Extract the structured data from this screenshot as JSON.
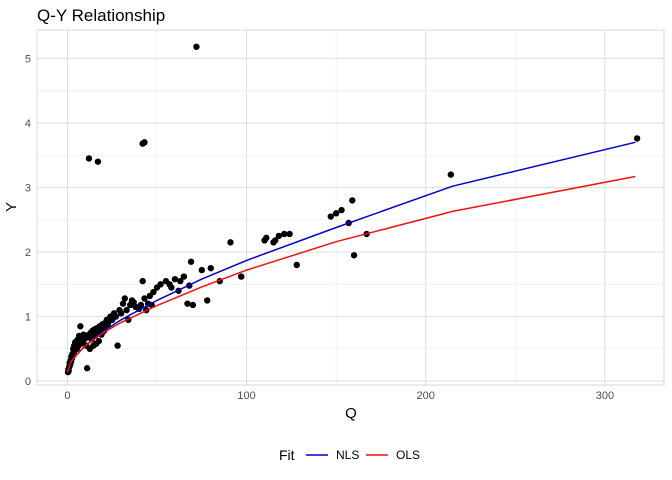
{
  "chart_data": {
    "type": "scatter",
    "title": "Q-Y Relationship",
    "xlabel": "Q",
    "ylabel": "Y",
    "xlim": [
      -17,
      333
    ],
    "ylim": [
      -0.06,
      5.44
    ],
    "x_ticks": [
      0,
      100,
      200,
      300
    ],
    "y_ticks": [
      0,
      1,
      2,
      3,
      4,
      5
    ],
    "x_tick_labels": [
      "0",
      "100",
      "200",
      "300"
    ],
    "y_tick_labels": [
      "0",
      "1",
      "2",
      "3",
      "4",
      "5"
    ],
    "grid": true,
    "legend": {
      "title": "Fit",
      "placement": "bottom",
      "entries": [
        {
          "label": "NLS",
          "color": "#0000cc"
        },
        {
          "label": "OLS",
          "color": "#ee1111"
        }
      ]
    },
    "points": [
      [
        0.3,
        0.14
      ],
      [
        0.5,
        0.18
      ],
      [
        0.7,
        0.16
      ],
      [
        1,
        0.22
      ],
      [
        1.2,
        0.28
      ],
      [
        1.5,
        0.25
      ],
      [
        1.8,
        0.32
      ],
      [
        2,
        0.3
      ],
      [
        2.2,
        0.38
      ],
      [
        2.5,
        0.35
      ],
      [
        2.8,
        0.42
      ],
      [
        3,
        0.4
      ],
      [
        3.2,
        0.5
      ],
      [
        3.5,
        0.45
      ],
      [
        3.8,
        0.55
      ],
      [
        4,
        0.48
      ],
      [
        4.3,
        0.6
      ],
      [
        4.5,
        0.52
      ],
      [
        5,
        0.62
      ],
      [
        5.3,
        0.5
      ],
      [
        5.5,
        0.58
      ],
      [
        6,
        0.65
      ],
      [
        6.2,
        0.55
      ],
      [
        6.5,
        0.7
      ],
      [
        7,
        0.6
      ],
      [
        7.2,
        0.85
      ],
      [
        7.5,
        0.58
      ],
      [
        8,
        0.68
      ],
      [
        8.5,
        0.62
      ],
      [
        9,
        0.72
      ],
      [
        9.5,
        0.65
      ],
      [
        10,
        0.7
      ],
      [
        10.5,
        0.55
      ],
      [
        11,
        0.2
      ],
      [
        11.5,
        0.68
      ],
      [
        12,
        0.72
      ],
      [
        12.5,
        0.5
      ],
      [
        13,
        0.75
      ],
      [
        13.5,
        0.65
      ],
      [
        14,
        0.78
      ],
      [
        14.5,
        0.55
      ],
      [
        15,
        0.8
      ],
      [
        15.5,
        0.7
      ],
      [
        16,
        0.58
      ],
      [
        16.5,
        0.82
      ],
      [
        17,
        0.75
      ],
      [
        17.5,
        0.62
      ],
      [
        18,
        0.85
      ],
      [
        18.5,
        0.8
      ],
      [
        19,
        0.72
      ],
      [
        19.5,
        0.88
      ],
      [
        20,
        0.82
      ],
      [
        20.5,
        0.78
      ],
      [
        21,
        0.9
      ],
      [
        21.5,
        0.85
      ],
      [
        22,
        0.95
      ],
      [
        22.5,
        0.88
      ],
      [
        23,
        0.92
      ],
      [
        24,
        1.0
      ],
      [
        25,
        0.95
      ],
      [
        26,
        1.05
      ],
      [
        27,
        1.0
      ],
      [
        28,
        0.55
      ],
      [
        29,
        1.1
      ],
      [
        30,
        1.05
      ],
      [
        31,
        1.2
      ],
      [
        32,
        1.28
      ],
      [
        33,
        1.1
      ],
      [
        34,
        0.95
      ],
      [
        35,
        1.18
      ],
      [
        36,
        1.25
      ],
      [
        37,
        1.22
      ],
      [
        38,
        1.15
      ],
      [
        40,
        1.12
      ],
      [
        41,
        1.18
      ],
      [
        42,
        1.55
      ],
      [
        43,
        1.28
      ],
      [
        44,
        1.1
      ],
      [
        45,
        1.2
      ],
      [
        46,
        1.32
      ],
      [
        47,
        1.18
      ],
      [
        48,
        1.38
      ],
      [
        50,
        1.45
      ],
      [
        52,
        1.5
      ],
      [
        55,
        1.55
      ],
      [
        57,
        1.5
      ],
      [
        58,
        1.45
      ],
      [
        60,
        1.58
      ],
      [
        62,
        1.4
      ],
      [
        63,
        1.55
      ],
      [
        65,
        1.62
      ],
      [
        67,
        1.2
      ],
      [
        68,
        1.48
      ],
      [
        69,
        1.85
      ],
      [
        70,
        1.18
      ],
      [
        75,
        1.72
      ],
      [
        78,
        1.25
      ],
      [
        80,
        1.75
      ],
      [
        85,
        1.55
      ],
      [
        91,
        2.15
      ],
      [
        97,
        1.62
      ],
      [
        110,
        2.18
      ],
      [
        111,
        2.22
      ],
      [
        115,
        2.15
      ],
      [
        116,
        2.18
      ],
      [
        118,
        2.25
      ],
      [
        121,
        2.28
      ],
      [
        124,
        2.28
      ],
      [
        128,
        1.8
      ],
      [
        147,
        2.55
      ],
      [
        150,
        2.6
      ],
      [
        153,
        2.65
      ],
      [
        157,
        2.45
      ],
      [
        159,
        2.8
      ],
      [
        160,
        1.95
      ],
      [
        167,
        2.28
      ],
      [
        214,
        3.2
      ],
      [
        318,
        3.76
      ],
      [
        12,
        3.45
      ],
      [
        17,
        3.4
      ],
      [
        42,
        3.68
      ],
      [
        43,
        3.7
      ],
      [
        72,
        5.18
      ]
    ],
    "series": [
      {
        "name": "NLS",
        "color": "#0000cc",
        "x": [
          0,
          2,
          5,
          10,
          20,
          30,
          50,
          75,
          100,
          150,
          215,
          317
        ],
        "y": [
          0.14,
          0.29,
          0.4,
          0.55,
          0.77,
          0.95,
          1.25,
          1.58,
          1.87,
          2.38,
          3.02,
          3.7
        ]
      },
      {
        "name": "OLS",
        "color": "#ee1111",
        "x": [
          0,
          2,
          5,
          10,
          20,
          30,
          50,
          75,
          100,
          150,
          215,
          317
        ],
        "y": [
          0.14,
          0.3,
          0.41,
          0.55,
          0.75,
          0.91,
          1.17,
          1.46,
          1.72,
          2.16,
          2.63,
          3.17
        ]
      }
    ]
  }
}
